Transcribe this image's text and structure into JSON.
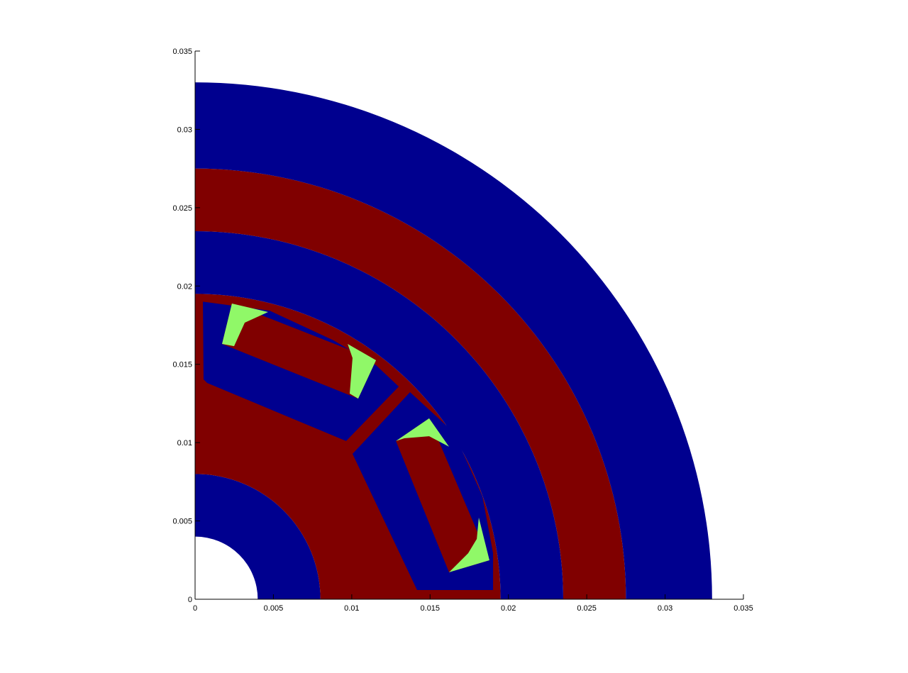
{
  "chart_data": {
    "type": "patch",
    "xlim": [
      0,
      0.035
    ],
    "ylim": [
      0,
      0.035
    ],
    "xticks": [
      0,
      0.005,
      0.01,
      0.015,
      0.02,
      0.025,
      0.03,
      0.035
    ],
    "yticks": [
      0,
      0.005,
      0.01,
      0.015,
      0.02,
      0.025,
      0.03,
      0.035
    ],
    "rings": [
      {
        "color": "#00008f",
        "r": [
          0.004,
          0.008
        ]
      },
      {
        "color": "#800000",
        "r": [
          0.008,
          0.0195
        ]
      },
      {
        "color": "#00008f",
        "r": [
          0.0195,
          0.0235
        ]
      },
      {
        "color": "#800000",
        "r": [
          0.0235,
          0.0275
        ]
      },
      {
        "color": "#00008f",
        "r": [
          0.0275,
          0.033
        ]
      }
    ],
    "shapes": [
      {
        "color": "#00008f",
        "x": [
          0.0005,
          0.00475,
          0.00883,
          0.01155,
          0.013,
          0.00964,
          0.00077,
          0.00054
        ],
        "y": [
          0.019,
          0.01843,
          0.01653,
          0.01494,
          0.01358,
          0.0101,
          0.01381,
          0.01404
        ]
      },
      {
        "color": "#800000",
        "x": [
          0.00235,
          0.01155,
          0.01041,
          0.00172
        ],
        "y": [
          0.01888,
          0.01526,
          0.01281,
          0.0163
        ]
      },
      {
        "color": "#90f868",
        "x": [
          0.00235,
          0.00466,
          0.00317,
          0.00249,
          0.00172
        ],
        "y": [
          0.01888,
          0.01834,
          0.01766,
          0.01616,
          0.0163
        ]
      },
      {
        "color": "#90f868",
        "x": [
          0.00974,
          0.01155,
          0.01041,
          0.00987,
          0.01005
        ],
        "y": [
          0.0163,
          0.01526,
          0.01281,
          0.01313,
          0.0154
        ]
      },
      {
        "color": "#00008f",
        "x": [
          0.01372,
          0.01653,
          0.01834,
          0.01902,
          0.01902,
          0.01417,
          0.01005
        ],
        "y": [
          0.01322,
          0.01064,
          0.00657,
          0.00294,
          0.00059,
          0.00059,
          0.00928
        ]
      },
      {
        "color": "#800000",
        "x": [
          0.01282,
          0.01494,
          0.01879,
          0.01621
        ],
        "y": [
          0.0101,
          0.01155,
          0.00249,
          0.00172
        ]
      },
      {
        "color": "#90f868",
        "x": [
          0.01282,
          0.01494,
          0.01621,
          0.01494,
          0.01336
        ],
        "y": [
          0.0101,
          0.01155,
          0.00974,
          0.01041,
          0.01028
        ]
      },
      {
        "color": "#90f868",
        "x": [
          0.01811,
          0.01879,
          0.01621,
          0.01743,
          0.01798
        ],
        "y": [
          0.00521,
          0.00249,
          0.00172,
          0.00294,
          0.00385
        ]
      }
    ]
  }
}
